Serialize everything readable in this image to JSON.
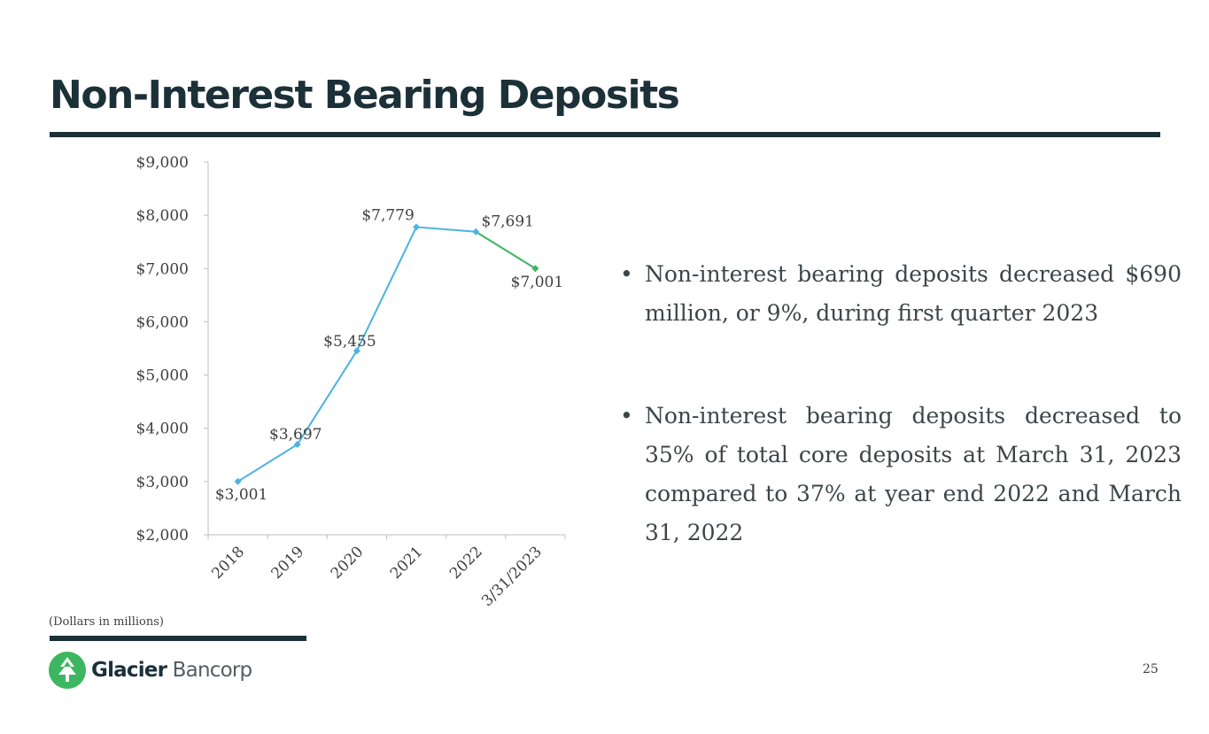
{
  "title": "Non-Interest Bearing Deposits",
  "bullets": [
    "Non-interest bearing deposits decreased $690 million, or 9%, during first quarter 2023",
    "Non-interest bearing deposits decreased to 35% of total core deposits at March 31, 2023 compared to 37% at year end 2022 and March 31, 2022"
  ],
  "note": "(Dollars in millions)",
  "logo": {
    "name_bold": "Glacier",
    "name_light": "Bancorp"
  },
  "page_number": "25",
  "colors": {
    "primary_line": "#4bb3e0",
    "latest_segment": "#3cb660",
    "brand_dark": "#1c3038",
    "brand_green": "#3cb660"
  },
  "chart_data": {
    "type": "line",
    "categories": [
      "2018",
      "2019",
      "2020",
      "2021",
      "2022",
      "3/31/2023"
    ],
    "values": [
      3001,
      3697,
      5455,
      7779,
      7691,
      7001
    ],
    "data_labels": [
      "$3,001",
      "$3,697",
      "$5,455",
      "$7,779",
      "$7,691",
      "$7,001"
    ],
    "y_ticks": [
      2000,
      3000,
      4000,
      5000,
      6000,
      7000,
      8000,
      9000
    ],
    "y_tick_labels": [
      "$2,000",
      "$3,000",
      "$4,000",
      "$5,000",
      "$6,000",
      "$7,000",
      "$8,000",
      "$9,000"
    ],
    "ylim": [
      2000,
      9000
    ],
    "grid": false,
    "legend": "none",
    "highlight_last_segment": true
  }
}
